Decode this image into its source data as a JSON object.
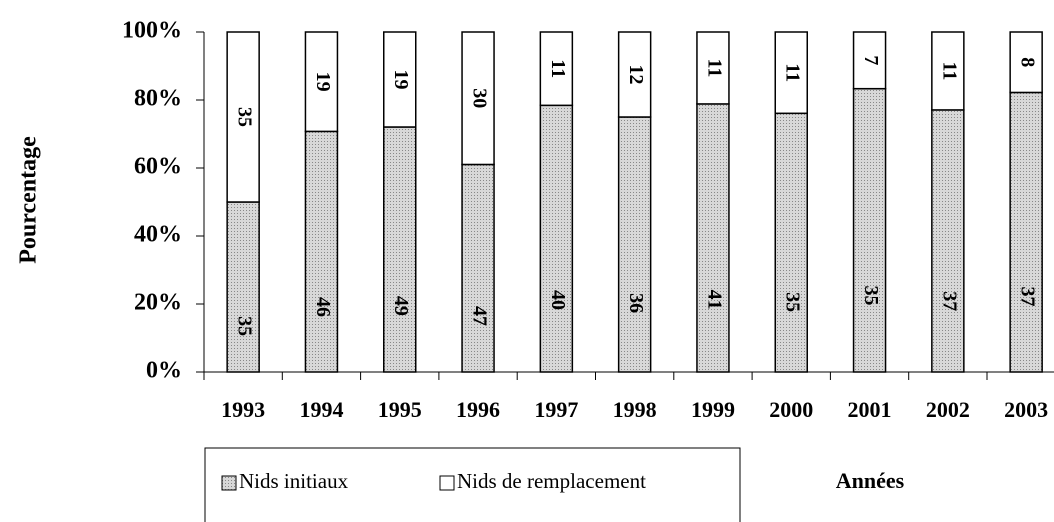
{
  "chart_data": {
    "type": "bar",
    "stacked": "percent",
    "y_label": "Pourcentage",
    "x_label": "Années",
    "categories": [
      "1993",
      "1994",
      "1995",
      "1996",
      "1997",
      "1998",
      "1999",
      "2000",
      "2001",
      "2002",
      "2003"
    ],
    "series": [
      {
        "name": "Nids initiaux",
        "color": "#c8c8c8",
        "values": [
          35,
          46,
          49,
          47,
          40,
          36,
          41,
          35,
          35,
          37,
          37
        ]
      },
      {
        "name": "Nids de remplacement",
        "color": "#ffffff",
        "values": [
          35,
          19,
          19,
          30,
          11,
          12,
          11,
          11,
          7,
          11,
          8
        ]
      }
    ],
    "ylim": [
      0,
      100
    ],
    "yticks": [
      {
        "value": 0,
        "label": "0%"
      },
      {
        "value": 20,
        "label": "20%"
      },
      {
        "value": 40,
        "label": "40%"
      },
      {
        "value": 60,
        "label": "60%"
      },
      {
        "value": 80,
        "label": "80%"
      },
      {
        "value": 100,
        "label": "100%"
      }
    ],
    "legend": "bottom"
  }
}
